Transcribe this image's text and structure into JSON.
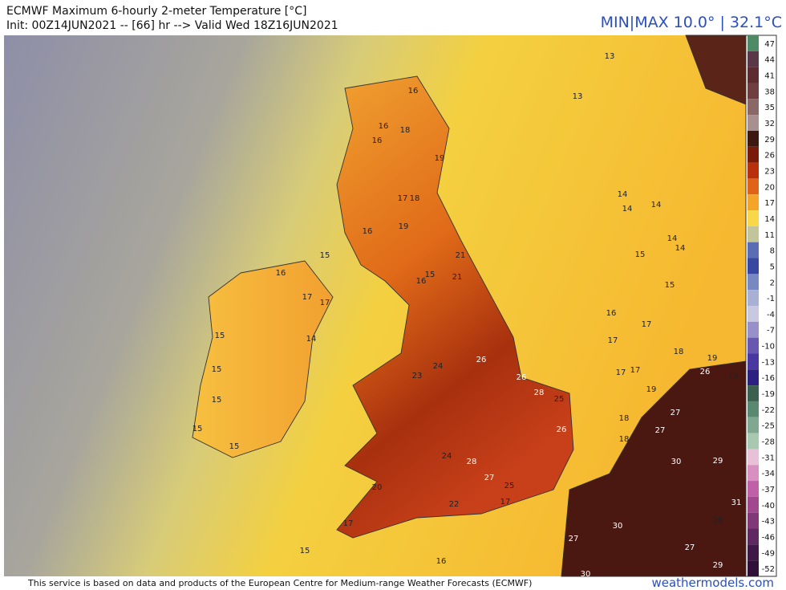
{
  "header": {
    "title": "ECMWF Maximum 6-hourly 2-meter Temperature [°C]",
    "subtitle": "Init: 00Z14JUN2021 -- [66] hr --> Valid Wed 18Z16JUN2021",
    "minmax": "MIN|MAX 10.0° | 32.1°C"
  },
  "colorbar": {
    "ticks": [
      47,
      44,
      41,
      38,
      35,
      32,
      29,
      26,
      23,
      20,
      17,
      14,
      11,
      8,
      5,
      2,
      -1,
      -4,
      -7,
      -10,
      -13,
      -16,
      -19,
      -22,
      -25,
      -28,
      -31,
      -34,
      -37,
      -40,
      -43,
      -46,
      -49,
      -52
    ],
    "colors": [
      "#4f8a66",
      "#5a3848",
      "#5c2c30",
      "#6e3e40",
      "#8a6868",
      "#a89090",
      "#3c1810",
      "#7a1a08",
      "#b8300c",
      "#e06418",
      "#f4a428",
      "#f8d848",
      "#c4c49a",
      "#5a6cb4",
      "#3848a0",
      "#7888c0",
      "#a8b0d4",
      "#c8c8e0",
      "#9890c8",
      "#6858b0",
      "#4838a0",
      "#2c2080",
      "#3c6050",
      "#5a8870",
      "#80a890",
      "#a8c8b0",
      "#e8c0d8",
      "#d890c0",
      "#c060a8",
      "#a04890",
      "#803878",
      "#602860",
      "#401848",
      "#301038"
    ]
  },
  "map": {
    "labels": [
      13,
      13,
      16,
      16,
      18,
      16,
      19,
      17,
      18,
      14,
      14,
      14,
      19,
      16,
      14,
      14,
      15,
      15,
      16,
      21,
      16,
      15,
      21,
      15,
      17,
      17,
      16,
      17,
      15,
      14,
      17,
      18,
      19,
      26,
      15,
      17,
      17,
      26,
      19,
      15,
      28,
      25,
      19,
      15,
      18,
      27,
      18,
      27,
      15,
      24,
      27,
      29,
      30,
      17,
      16,
      15,
      20,
      22,
      27,
      30,
      29,
      17,
      25,
      26,
      24,
      23,
      28,
      26,
      30,
      31,
      25,
      27
    ]
  },
  "footer": {
    "notice": "This service is based on data and products of the European Centre for Medium-range Weather Forecasts (ECMWF)",
    "site": "weathermodels.com"
  }
}
